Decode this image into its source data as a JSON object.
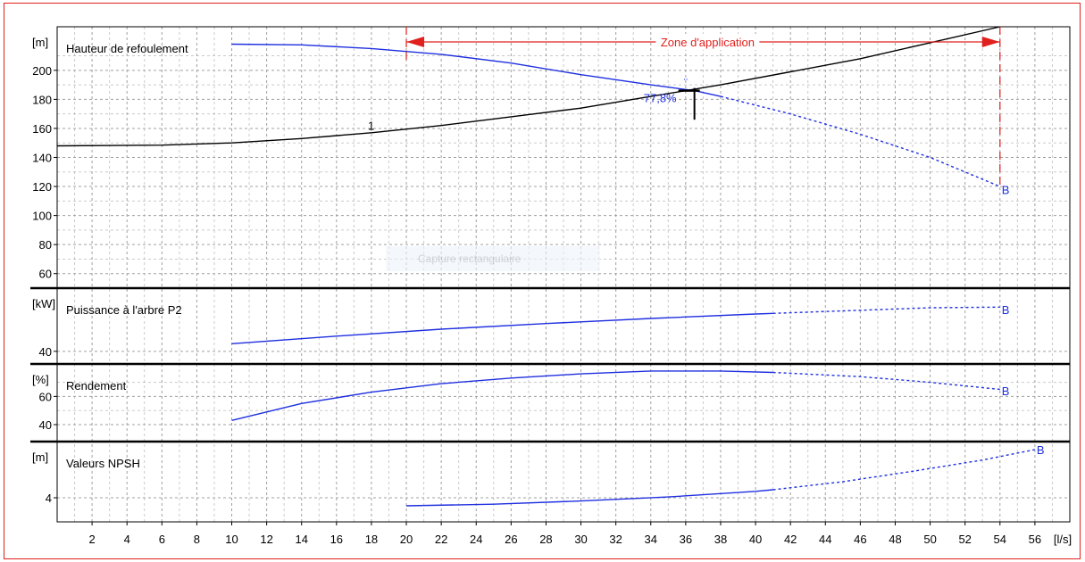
{
  "chart_data": {
    "type": "line",
    "x_unit": "[l/s]",
    "x_range": [
      0,
      58
    ],
    "x_ticks": [
      2,
      4,
      6,
      8,
      10,
      12,
      14,
      16,
      18,
      20,
      22,
      24,
      26,
      28,
      30,
      32,
      34,
      36,
      38,
      40,
      42,
      44,
      46,
      48,
      50,
      52,
      54,
      56
    ],
    "colors": {
      "pump": "#1f2fe0",
      "system": "#000000",
      "application": "#e0201c",
      "grid": "#a0a0a0"
    },
    "panels": [
      {
        "id": "head",
        "label": "Hauteur de refoulement",
        "unit": "[m]",
        "y_range": [
          50,
          230
        ],
        "y_ticks": [
          60,
          80,
          100,
          120,
          140,
          160,
          180,
          200
        ],
        "series": [
          {
            "role": "pump",
            "style": "solid",
            "x": [
              10,
              14,
              18,
              22,
              26,
              30,
              34,
              36.5,
              38
            ],
            "y": [
              218,
              217.5,
              215,
              211,
              205,
              197,
              190,
              186,
              182
            ]
          },
          {
            "role": "pump",
            "style": "dashed",
            "x": [
              38,
              42,
              46,
              50,
              54
            ],
            "y": [
              182,
              170,
              156,
              140,
              120
            ]
          },
          {
            "role": "system",
            "style": "solid",
            "x": [
              0,
              6,
              10,
              14,
              18,
              22,
              26,
              30,
              34,
              38,
              42,
              46,
              50,
              54
            ],
            "y": [
              148,
              148.5,
              150,
              153,
              157,
              162,
              168,
              174,
              182,
              190,
              199,
              208,
              219,
              230
            ]
          }
        ],
        "point_labels": [
          {
            "text": "1",
            "x": 17.8,
            "y": 162
          },
          {
            "text": "B",
            "x": 54.1,
            "y": 118
          }
        ],
        "efficiency_label": "77,8%",
        "application_zone": {
          "label": "Zone d'application",
          "x_start": 20,
          "x_end": 54
        }
      },
      {
        "id": "power",
        "label": "Puissance à l'arbre P2",
        "unit": "[kW]",
        "y_range": [
          30,
          90
        ],
        "y_ticks": [
          40
        ],
        "series": [
          {
            "role": "pump",
            "style": "solid",
            "x": [
              10,
              16,
              22,
              28,
              34,
              40,
              41
            ],
            "y": [
              46,
              52,
              57.5,
              62,
              66,
              69.5,
              70
            ]
          },
          {
            "role": "pump",
            "style": "dashed",
            "x": [
              41,
              46,
              50,
              54
            ],
            "y": [
              70,
              72.5,
              74.5,
              75
            ]
          }
        ],
        "point_labels": [
          {
            "text": "B",
            "x": 54.1,
            "y": 73
          }
        ]
      },
      {
        "id": "efficiency",
        "label": "Rendement",
        "unit": "[%]",
        "y_range": [
          28,
          83
        ],
        "y_ticks": [
          40,
          60
        ],
        "series": [
          {
            "role": "pump",
            "style": "solid",
            "x": [
              10,
              14,
              18,
              22,
              26,
              30,
              34,
              38,
              41
            ],
            "y": [
              43,
              55,
              63,
              69,
              73,
              76,
              78,
              78,
              77
            ]
          },
          {
            "role": "pump",
            "style": "dashed",
            "x": [
              41,
              46,
              50,
              54
            ],
            "y": [
              77,
              74,
              70,
              65
            ]
          }
        ],
        "point_labels": [
          {
            "text": "B",
            "x": 54.1,
            "y": 64
          }
        ]
      },
      {
        "id": "npsh",
        "label": "Valeurs NPSH",
        "unit": "[m]",
        "y_range": [
          1,
          11
        ],
        "y_ticks": [
          4
        ],
        "series": [
          {
            "role": "pump",
            "style": "solid",
            "x": [
              20,
              25,
              30,
              35,
              40,
              41
            ],
            "y": [
              3,
              3.2,
              3.6,
              4.1,
              4.8,
              5
            ]
          },
          {
            "role": "pump",
            "style": "dashed",
            "x": [
              41,
              45,
              49,
              53,
              56
            ],
            "y": [
              5,
              6,
              7.3,
              8.7,
              10
            ]
          }
        ],
        "point_labels": [
          {
            "text": "B",
            "x": 56.1,
            "y": 10
          }
        ]
      }
    ]
  },
  "overlay": {
    "caption": "Capture rectangulaire"
  }
}
